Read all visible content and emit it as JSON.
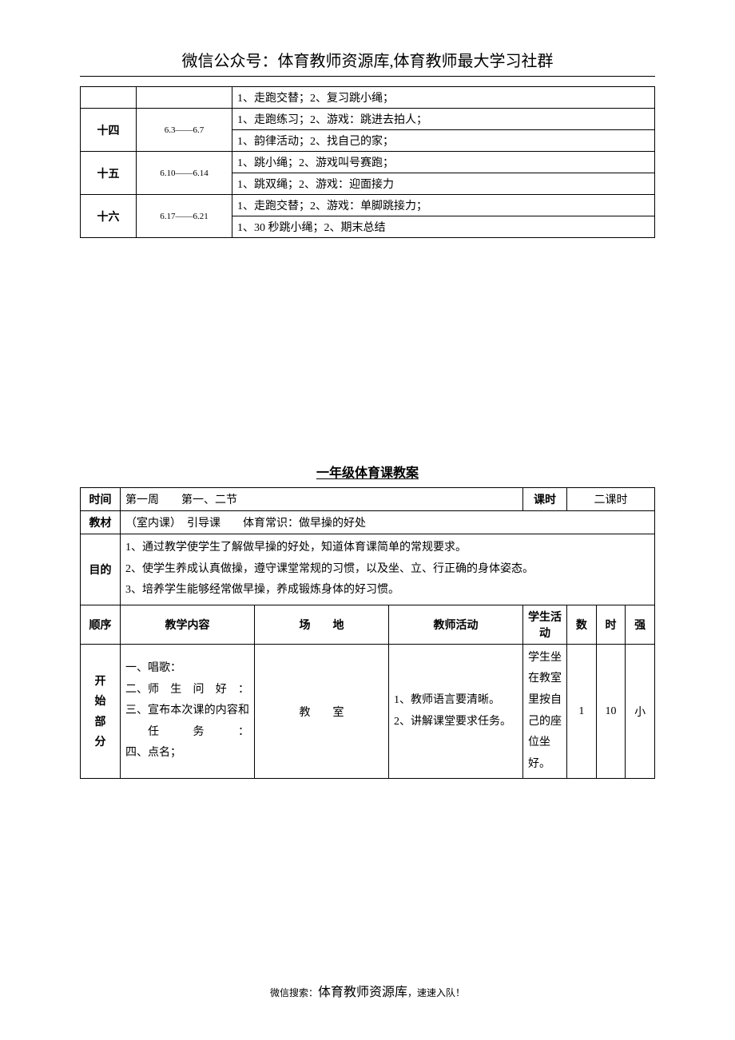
{
  "header": {
    "title": "微信公众号：体育教师资源库,体育教师最大学习社群"
  },
  "schedule": {
    "rows": [
      {
        "week": "",
        "date": "",
        "content": "1、走跑交替；2、复习跳小绳；"
      },
      {
        "week": "十四",
        "date": "6.3——6.7",
        "content": "1、走跑练习；2、游戏：跳进去拍人；"
      },
      {
        "week": "",
        "date": "",
        "content": "1、韵律活动；2、找自己的家；"
      },
      {
        "week": "十五",
        "date": "6.10——6.14",
        "content": "1、跳小绳；2、游戏叫号赛跑；"
      },
      {
        "week": "",
        "date": "",
        "content": "1、跳双绳；2、游戏：迎面接力"
      },
      {
        "week": "十六",
        "date": "6.17——6.21",
        "content": "1、走跑交替；2、游戏：单脚跳接力；"
      },
      {
        "week": "",
        "date": "",
        "content": "1、30 秒跳小绳；2、期末总结"
      }
    ]
  },
  "lesson": {
    "section_title": "一年级体育课教案",
    "time_label": "时间",
    "time_value": "第一周　　第一、二节",
    "keshi_label": "课时",
    "keshi_value": "二课时",
    "material_label": "教材",
    "material_value": "（室内课）　引导课　　体育常识：做早操的好处",
    "purpose_label": "目的",
    "purpose_1": "1、通过教学使学生了解做早操的好处，知道体育课简单的常规要求。",
    "purpose_2": "2、使学生养成认真做操，遵守课堂常规的习惯，以及坐、立、行正确的身体姿态。",
    "purpose_3": "3、培养学生能够经常做早操，养成锻炼身体的好习惯。",
    "headers": {
      "order": "顺序",
      "content": "教学内容",
      "place": "场　　地",
      "teacher": "教师活动",
      "student": "学生活动",
      "shu": "数",
      "shi": "时",
      "qiang": "强"
    },
    "row1": {
      "order_text": "开始部分",
      "content_1": "一、唱歌：",
      "content_2_a": "二、",
      "content_2_b": "师生问好：",
      "content_3_a": "三、",
      "content_3_b": "宣布本次课的内容和任务：",
      "content_4": "四、点名；",
      "place": "教　　室",
      "teacher_1": "1、教师语言要清晰。",
      "teacher_2": "2、讲解课堂要求任务。",
      "student": "学生坐在教室里按自己的座位坐好。",
      "shu": "1",
      "shi": "10",
      "qiang": "小"
    }
  },
  "footer": {
    "prefix": "微信搜索：",
    "name": "体育教师资源库",
    "suffix": "，速速入队！"
  }
}
